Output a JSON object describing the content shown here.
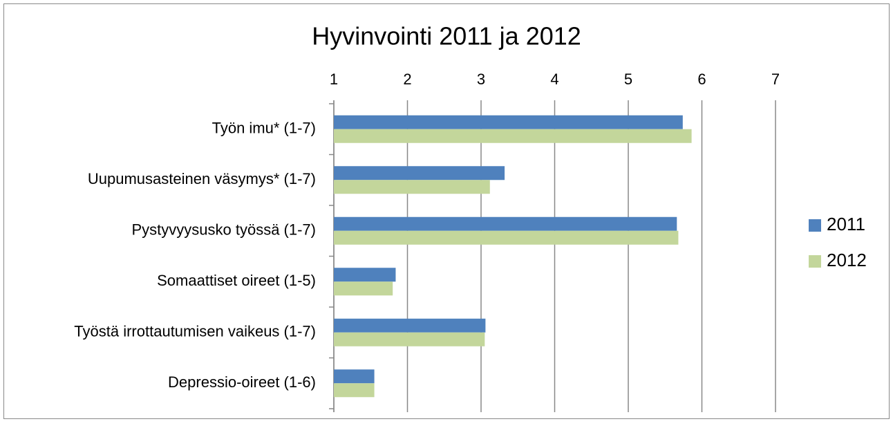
{
  "chart_data": {
    "type": "bar",
    "orientation": "horizontal",
    "title": "Hyvinvointi 2011 ja 2012",
    "categories": [
      "Työn imu* (1-7)",
      "Uupumusasteinen väsymys* (1-7)",
      "Pystyvyysusko työssä (1-7)",
      "Somaattiset oireet (1-5)",
      "Työstä irrottautumisen vaikeus (1-7)",
      "Depressio-oireet (1-6)"
    ],
    "series": [
      {
        "name": "2011",
        "color": "#4f81bd",
        "values": [
          5.74,
          3.32,
          5.66,
          1.84,
          3.06,
          1.55
        ]
      },
      {
        "name": "2012",
        "color": "#c3d69b",
        "values": [
          5.86,
          3.12,
          5.68,
          1.8,
          3.05,
          1.55
        ]
      }
    ],
    "xlim": [
      1,
      7
    ],
    "xticks": [
      1,
      2,
      3,
      4,
      5,
      6,
      7
    ],
    "grid": true,
    "legend": "right"
  }
}
